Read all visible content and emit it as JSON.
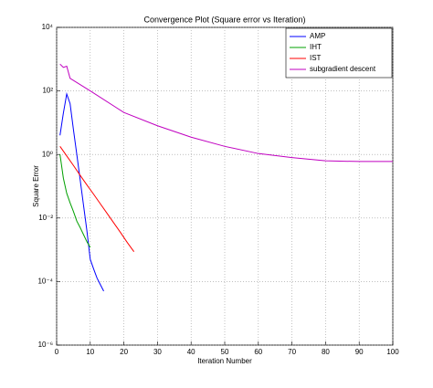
{
  "chart_data": {
    "type": "line",
    "title": "Convergence Plot (Square error vs Iteration)",
    "x_label": "Iteration Number",
    "y_label": "Square Error",
    "log_y": true,
    "grid": true,
    "legend": "upper right",
    "xlim": [
      0,
      100
    ],
    "xticks": [
      0,
      10,
      20,
      30,
      40,
      50,
      60,
      70,
      80,
      90,
      100
    ],
    "ylim": [
      1e-06,
      10000
    ],
    "yticks": [
      {
        "value": 1e-06,
        "label": "10⁻⁶"
      },
      {
        "value": 0.0001,
        "label": "10⁻⁴"
      },
      {
        "value": 0.01,
        "label": "10⁻²"
      },
      {
        "value": 1,
        "label": "10⁰"
      },
      {
        "value": 100,
        "label": "10²"
      },
      {
        "value": 10000,
        "label": "10⁴"
      }
    ],
    "series": [
      {
        "name": "AMP",
        "color": "#0000ff",
        "x": [
          1,
          2,
          3,
          4,
          5,
          6,
          7,
          8,
          9,
          10,
          11,
          12,
          13,
          14
        ],
        "values": [
          4,
          20,
          80,
          40,
          6,
          1,
          0.16,
          0.025,
          0.004,
          0.0005,
          0.00025,
          0.00013,
          8e-05,
          5e-05
        ]
      },
      {
        "name": "IHT",
        "color": "#00a000",
        "x": [
          1,
          2,
          3,
          4,
          5,
          6,
          7,
          8,
          9,
          10
        ],
        "values": [
          1,
          0.18,
          0.06,
          0.03,
          0.016,
          0.008,
          0.005,
          0.003,
          0.0018,
          0.0012
        ]
      },
      {
        "name": "IST",
        "color": "#ff0000",
        "x": [
          1,
          3,
          5,
          7,
          9,
          11,
          13,
          15,
          17,
          19,
          21,
          23
        ],
        "values": [
          1.8,
          0.9,
          0.45,
          0.22,
          0.11,
          0.056,
          0.028,
          0.014,
          0.007,
          0.0035,
          0.0017,
          0.00087
        ]
      },
      {
        "name": "subgradient descent",
        "color": "#c000c0",
        "x": [
          1,
          2,
          3,
          4,
          10,
          20,
          30,
          40,
          50,
          60,
          70,
          80,
          90,
          100
        ],
        "values": [
          700,
          550,
          600,
          250,
          100,
          21,
          8,
          3.5,
          1.8,
          1.07,
          0.8,
          0.63,
          0.6,
          0.6
        ]
      }
    ]
  }
}
